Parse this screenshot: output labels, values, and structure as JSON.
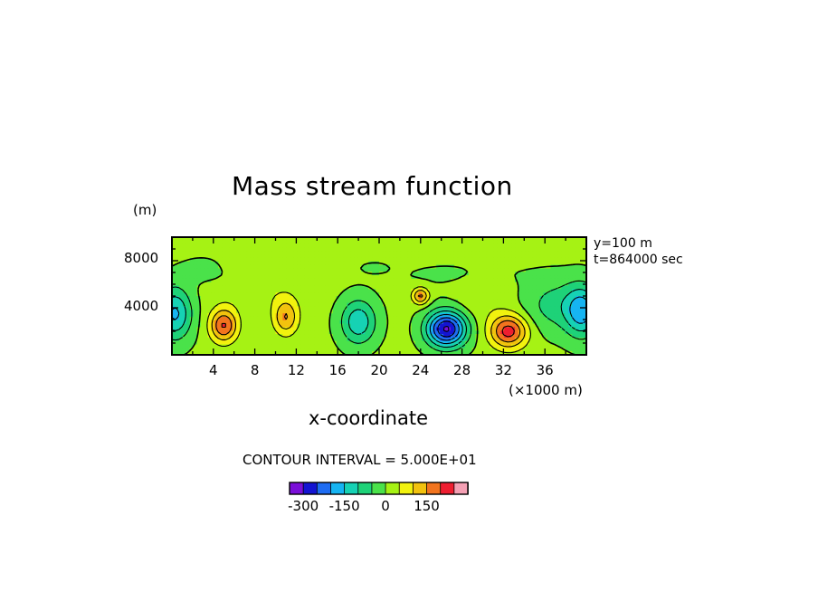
{
  "chart_data": {
    "type": "heatmap",
    "title": "Mass stream function",
    "xlabel": "x-coordinate",
    "x_unit": "(×1000 m)",
    "y_unit": "(m)",
    "info": [
      "y=100 m",
      "t=864000 sec"
    ],
    "xlim": [
      0,
      40
    ],
    "ylim": [
      0,
      10000
    ],
    "x_ticks": [
      4,
      8,
      12,
      16,
      20,
      24,
      28,
      32,
      36
    ],
    "x_tick_labels": [
      "4",
      "8",
      "12",
      "16",
      "20",
      "24",
      "28",
      "32",
      "36"
    ],
    "y_ticks": [
      4000,
      8000
    ],
    "y_tick_labels": [
      "4000",
      "8000"
    ],
    "contour_interval_label": "CONTOUR INTERVAL = 5.000E+01",
    "contour_interval": 50,
    "background_value": 10,
    "colorbar": {
      "levels": [
        -300,
        -250,
        -200,
        -150,
        -100,
        -50,
        0,
        50,
        100,
        150,
        200
      ],
      "tick_values": [
        -300,
        -150,
        0,
        150
      ],
      "tick_labels": [
        "-300",
        "-150",
        "0",
        "150"
      ],
      "colors": [
        "#7a0fd8",
        "#1414d2",
        "#1e6cf2",
        "#16b4f2",
        "#16d2b4",
        "#1ed278",
        "#4ae24a",
        "#a6f214",
        "#f2f20e",
        "#f2c20e",
        "#f2741e",
        "#ee1e30",
        "#f4a0b4"
      ]
    },
    "features": [
      {
        "x": 5.0,
        "y": 2500,
        "sx": 1.3,
        "sy": 1400,
        "amp": 195
      },
      {
        "x": 11.0,
        "y": 3200,
        "sx": 1.2,
        "sy": 1500,
        "amp": 140
      },
      {
        "x": 8.5,
        "y": 5500,
        "sx": 4.5,
        "sy": 1800,
        "amp": 30
      },
      {
        "x": 24.0,
        "y": 5000,
        "sx": 0.8,
        "sy": 700,
        "amp": 155
      },
      {
        "x": 26.5,
        "y": 2200,
        "sx": 1.9,
        "sy": 1500,
        "amp": -320
      },
      {
        "x": 32.5,
        "y": 2000,
        "sx": 1.8,
        "sy": 1400,
        "amp": 215
      },
      {
        "x": 30.0,
        "y": 5000,
        "sx": 2.5,
        "sy": 2000,
        "amp": 35
      },
      {
        "x": 18.0,
        "y": 2800,
        "sx": 1.7,
        "sy": 1900,
        "amp": -150
      },
      {
        "x": 0.3,
        "y": 3500,
        "sx": 1.6,
        "sy": 2200,
        "amp": -170
      },
      {
        "x": 39.6,
        "y": 3700,
        "sx": 1.6,
        "sy": 2200,
        "amp": -170
      },
      {
        "x": 37.0,
        "y": 4200,
        "sx": 3.0,
        "sy": 2200,
        "amp": -80
      },
      {
        "x": 8.0,
        "y": 6500,
        "sx": 4.0,
        "sy": 800,
        "amp": -18
      },
      {
        "x": 3.0,
        "y": 7200,
        "sx": 2.5,
        "sy": 1300,
        "amp": -20
      },
      {
        "x": 28.0,
        "y": 6800,
        "sx": 6.0,
        "sy": 1000,
        "amp": -20
      },
      {
        "x": 19.5,
        "y": 7400,
        "sx": 1.5,
        "sy": 500,
        "amp": -18
      }
    ]
  }
}
